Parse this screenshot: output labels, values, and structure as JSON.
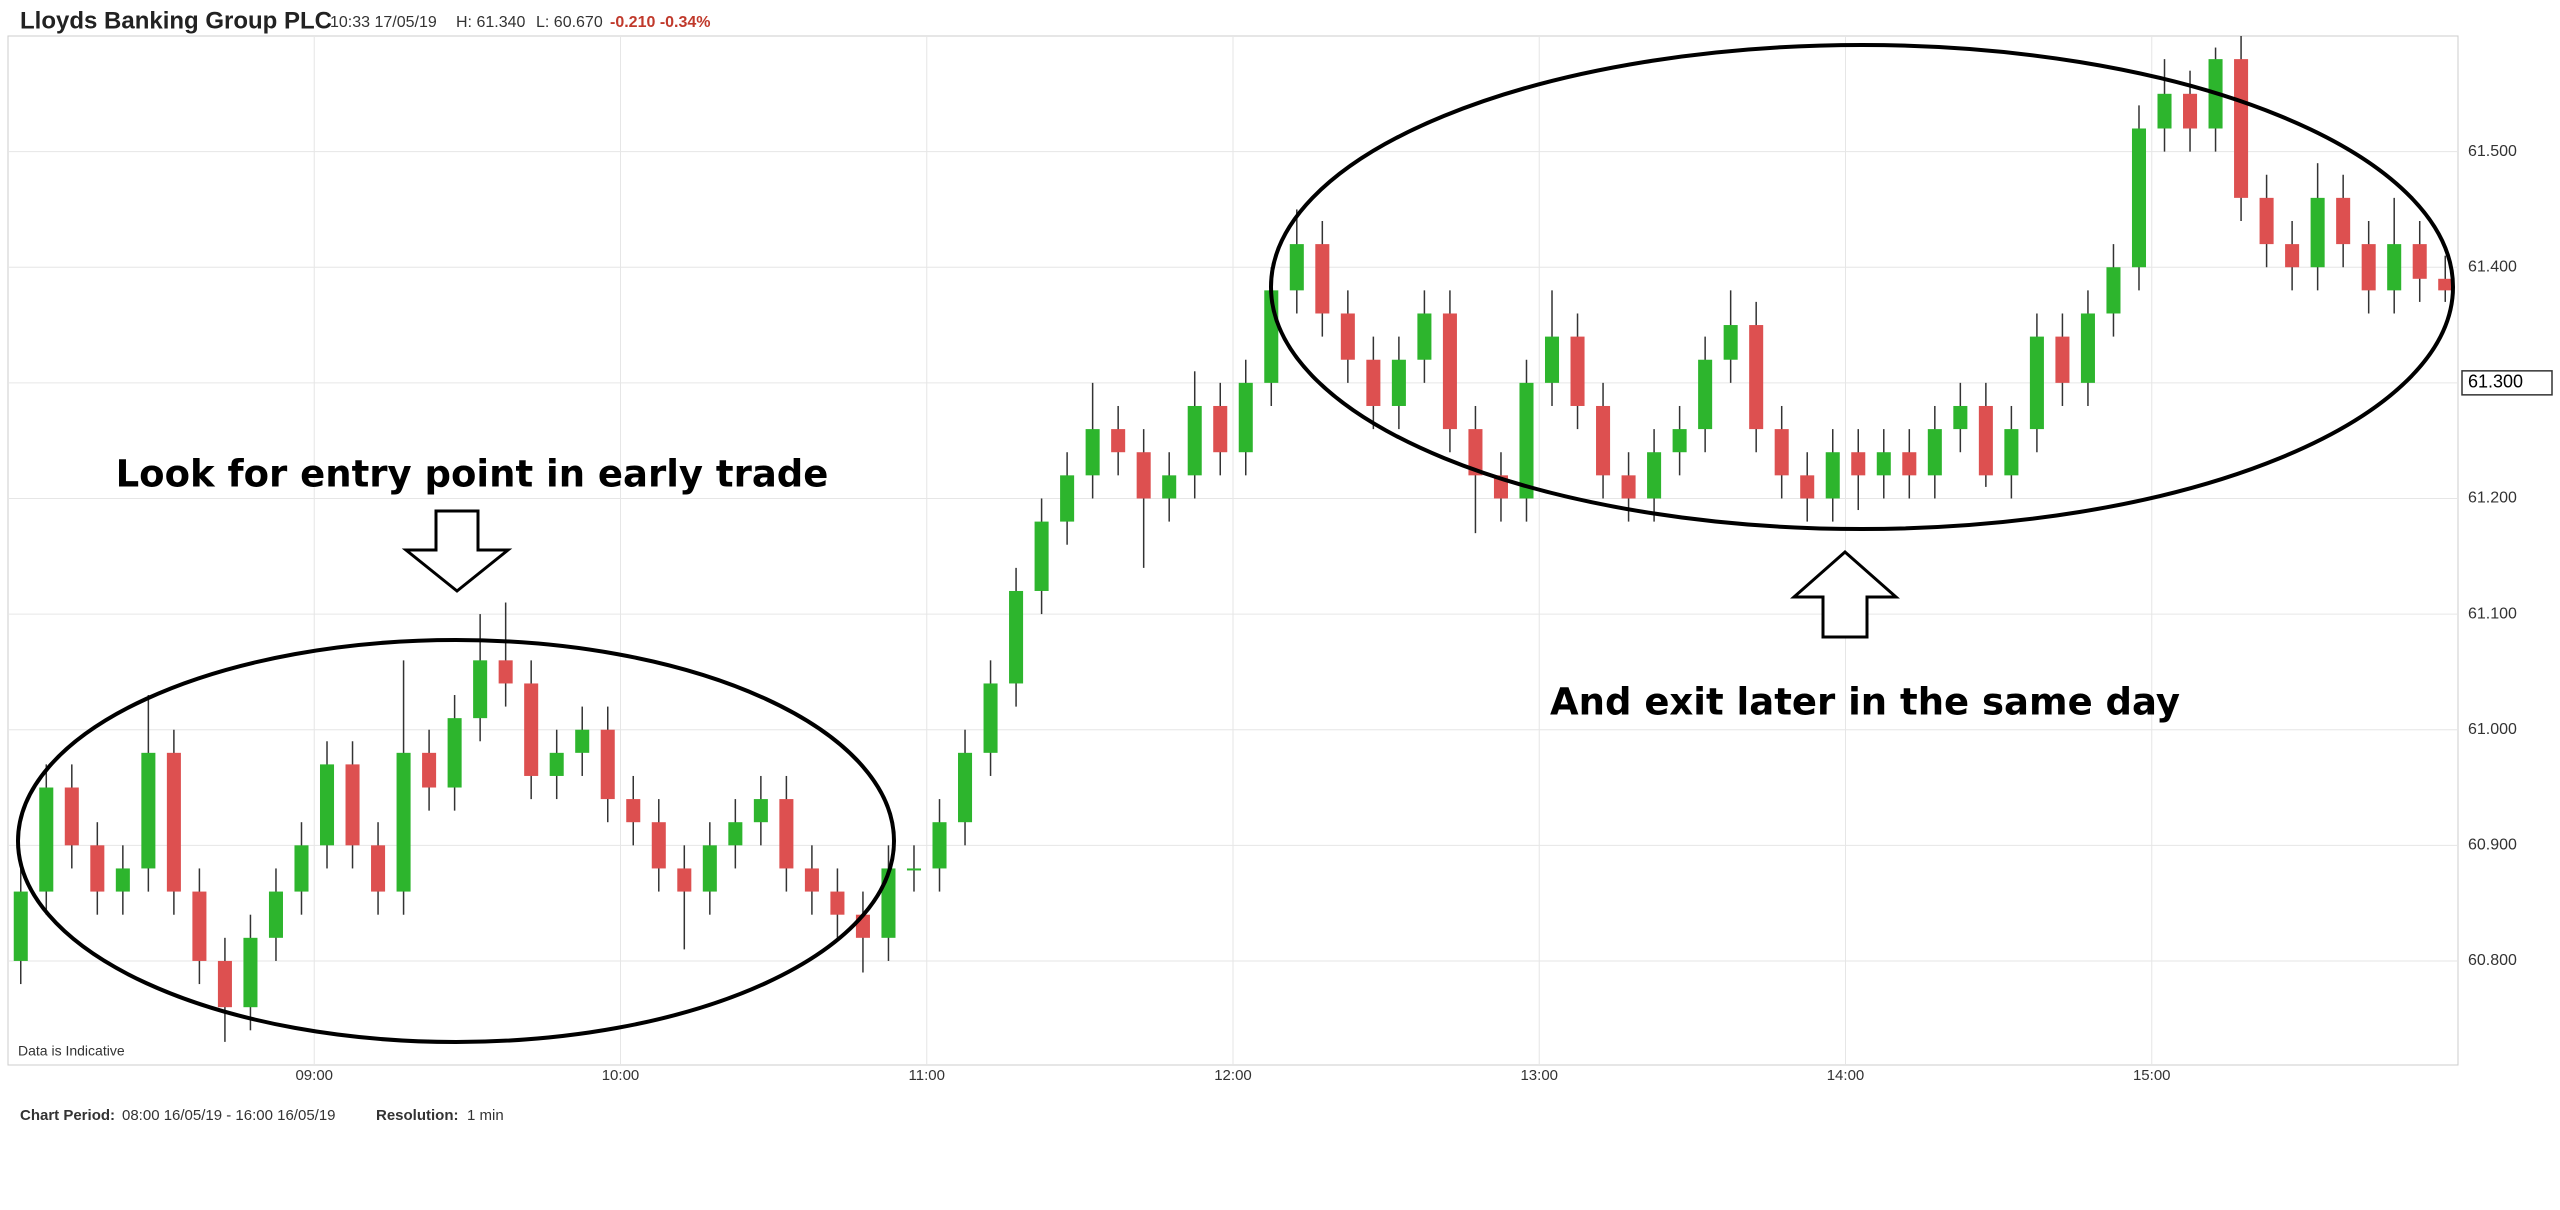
{
  "chart_data": {
    "type": "candlestick",
    "title": "Lloyds Banking Group PLC",
    "header": {
      "time": "10:33 17/05/19",
      "high": "H: 61.340",
      "low": "L: 60.670",
      "change": "-0.210 -0.34%"
    },
    "footer": {
      "period_label": "Chart Period:",
      "period": "08:00 16/05/19 - 16:00 16/05/19",
      "resolution_label": "Resolution:",
      "resolution": "1 min"
    },
    "note": "Data is Indicative",
    "annotations": [
      "Look for entry point in early trade",
      "And exit later in the same day"
    ],
    "up_color": "#2db52d",
    "down_color": "#dd5050",
    "last_price": {
      "value": 61.3,
      "label": "61.300"
    },
    "xlim": [
      "08:00",
      "16:00"
    ],
    "xticks": [
      "09:00",
      "10:00",
      "11:00",
      "12:00",
      "13:00",
      "14:00",
      "15:00"
    ],
    "ylim": [
      60.71,
      61.6
    ],
    "yticks": [
      {
        "value": 60.8,
        "label": "60.800"
      },
      {
        "value": 60.9,
        "label": "60.900"
      },
      {
        "value": 61.0,
        "label": "61.000"
      },
      {
        "value": 61.1,
        "label": "61.100"
      },
      {
        "value": 61.2,
        "label": "61.200"
      },
      {
        "value": 61.3,
        "label": "61.300"
      },
      {
        "value": 61.4,
        "label": "61.400"
      },
      {
        "value": 61.5,
        "label": "61.500"
      }
    ],
    "grid": true,
    "x": [
      "08:00",
      "08:05",
      "08:10",
      "08:15",
      "08:20",
      "08:25",
      "08:30",
      "08:35",
      "08:40",
      "08:45",
      "08:50",
      "08:55",
      "09:00",
      "09:05",
      "09:10",
      "09:15",
      "09:20",
      "09:25",
      "09:30",
      "09:35",
      "09:40",
      "09:45",
      "09:50",
      "09:55",
      "10:00",
      "10:05",
      "10:10",
      "10:15",
      "10:20",
      "10:25",
      "10:30",
      "10:35",
      "10:40",
      "10:45",
      "10:50",
      "10:55",
      "11:00",
      "11:05",
      "11:10",
      "11:15",
      "11:20",
      "11:25",
      "11:30",
      "11:35",
      "11:40",
      "11:45",
      "11:50",
      "11:55",
      "12:00",
      "12:05",
      "12:10",
      "12:15",
      "12:20",
      "12:25",
      "12:30",
      "12:35",
      "12:40",
      "12:45",
      "12:50",
      "12:55",
      "13:00",
      "13:05",
      "13:10",
      "13:15",
      "13:20",
      "13:25",
      "13:30",
      "13:35",
      "13:40",
      "13:45",
      "13:50",
      "13:55",
      "14:00",
      "14:05",
      "14:10",
      "14:15",
      "14:20",
      "14:25",
      "14:30",
      "14:35",
      "14:40",
      "14:45",
      "14:50",
      "14:55",
      "15:00",
      "15:05",
      "15:10",
      "15:15",
      "15:20",
      "15:25",
      "15:30",
      "15:35",
      "15:40",
      "15:45",
      "15:50",
      "15:55"
    ],
    "open": [
      60.8,
      60.86,
      60.95,
      60.9,
      60.86,
      60.88,
      60.98,
      60.86,
      60.8,
      60.76,
      60.82,
      60.86,
      60.9,
      60.97,
      60.9,
      60.86,
      60.98,
      60.95,
      61.01,
      61.06,
      61.04,
      60.96,
      60.98,
      61.0,
      60.94,
      60.92,
      60.88,
      60.86,
      60.9,
      60.92,
      60.94,
      60.88,
      60.86,
      60.84,
      60.82,
      60.88,
      60.88,
      60.92,
      60.98,
      61.04,
      61.12,
      61.18,
      61.22,
      61.26,
      61.24,
      61.2,
      61.22,
      61.28,
      61.24,
      61.3,
      61.38,
      61.42,
      61.36,
      61.32,
      61.28,
      61.32,
      61.36,
      61.26,
      61.22,
      61.2,
      61.3,
      61.34,
      61.28,
      61.22,
      61.2,
      61.24,
      61.26,
      61.32,
      61.35,
      61.26,
      61.22,
      61.2,
      61.24,
      61.22,
      61.24,
      61.22,
      61.26,
      61.28,
      61.22,
      61.26,
      61.34,
      61.3,
      61.36,
      61.4,
      61.52,
      61.55,
      61.52,
      61.58,
      61.46,
      61.42,
      61.4,
      61.46,
      61.42,
      61.38,
      61.42,
      61.39
    ],
    "high": [
      60.88,
      60.97,
      60.97,
      60.92,
      60.9,
      61.03,
      61.0,
      60.88,
      60.82,
      60.84,
      60.88,
      60.92,
      60.99,
      60.99,
      60.92,
      61.06,
      61.0,
      61.03,
      61.1,
      61.11,
      61.06,
      61.0,
      61.02,
      61.02,
      60.96,
      60.94,
      60.9,
      60.92,
      60.94,
      60.96,
      60.96,
      60.9,
      60.88,
      60.86,
      60.9,
      60.9,
      60.94,
      61.0,
      61.06,
      61.14,
      61.2,
      61.24,
      61.3,
      61.28,
      61.26,
      61.24,
      61.31,
      61.3,
      61.32,
      61.4,
      61.45,
      61.44,
      61.38,
      61.34,
      61.34,
      61.38,
      61.38,
      61.28,
      61.24,
      61.32,
      61.38,
      61.36,
      61.3,
      61.24,
      61.26,
      61.28,
      61.34,
      61.38,
      61.37,
      61.28,
      61.24,
      61.26,
      61.26,
      61.26,
      61.26,
      61.28,
      61.3,
      61.3,
      61.28,
      61.36,
      61.36,
      61.38,
      61.42,
      61.54,
      61.58,
      61.57,
      61.59,
      61.6,
      61.48,
      61.44,
      61.49,
      61.48,
      61.44,
      61.46,
      61.44,
      61.41
    ],
    "low": [
      60.78,
      60.84,
      60.88,
      60.84,
      60.84,
      60.86,
      60.84,
      60.78,
      60.73,
      60.74,
      60.8,
      60.84,
      60.88,
      60.88,
      60.84,
      60.84,
      60.93,
      60.93,
      60.99,
      61.02,
      60.94,
      60.94,
      60.96,
      60.92,
      60.9,
      60.86,
      60.81,
      60.84,
      60.88,
      60.9,
      60.86,
      60.84,
      60.82,
      60.79,
      60.8,
      60.86,
      60.86,
      60.9,
      60.96,
      61.02,
      61.1,
      61.16,
      61.2,
      61.22,
      61.14,
      61.18,
      61.2,
      61.22,
      61.22,
      61.28,
      61.36,
      61.34,
      61.3,
      61.26,
      61.26,
      61.3,
      61.24,
      61.17,
      61.18,
      61.18,
      61.28,
      61.26,
      61.2,
      61.18,
      61.18,
      61.22,
      61.24,
      61.3,
      61.24,
      61.2,
      61.18,
      61.18,
      61.19,
      61.2,
      61.2,
      61.2,
      61.24,
      61.21,
      61.2,
      61.24,
      61.28,
      61.28,
      61.34,
      61.38,
      61.5,
      61.5,
      61.5,
      61.44,
      61.4,
      61.38,
      61.38,
      61.4,
      61.36,
      61.36,
      61.37,
      61.37
    ],
    "close": [
      60.86,
      60.95,
      60.9,
      60.86,
      60.88,
      60.98,
      60.86,
      60.8,
      60.76,
      60.82,
      60.86,
      60.9,
      60.97,
      60.9,
      60.86,
      60.98,
      60.95,
      61.01,
      61.06,
      61.04,
      60.96,
      60.98,
      61.0,
      60.94,
      60.92,
      60.88,
      60.86,
      60.9,
      60.92,
      60.94,
      60.88,
      60.86,
      60.84,
      60.82,
      60.88,
      60.88,
      60.92,
      60.98,
      61.04,
      61.12,
      61.18,
      61.22,
      61.26,
      61.24,
      61.2,
      61.22,
      61.28,
      61.24,
      61.3,
      61.38,
      61.42,
      61.36,
      61.32,
      61.28,
      61.32,
      61.36,
      61.26,
      61.22,
      61.2,
      61.3,
      61.34,
      61.28,
      61.22,
      61.2,
      61.24,
      61.26,
      61.32,
      61.35,
      61.26,
      61.22,
      61.2,
      61.24,
      61.22,
      61.24,
      61.22,
      61.26,
      61.28,
      61.22,
      61.26,
      61.34,
      61.3,
      61.36,
      61.4,
      61.52,
      61.55,
      61.52,
      61.58,
      61.46,
      61.42,
      61.4,
      61.46,
      61.42,
      61.38,
      61.42,
      61.39,
      61.38
    ]
  }
}
